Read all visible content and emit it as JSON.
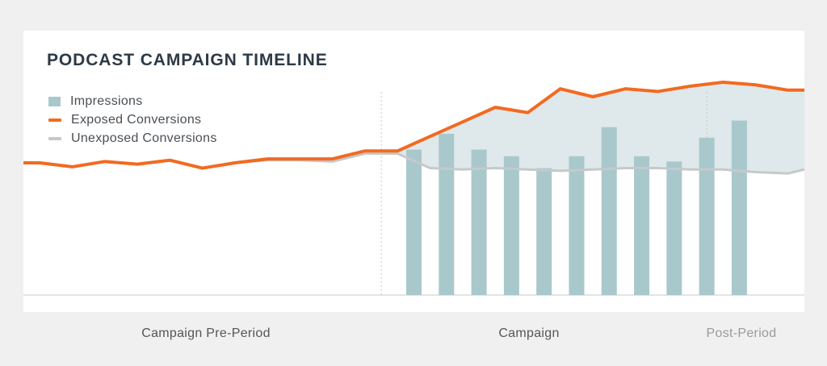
{
  "chart_data": {
    "type": "bar+line",
    "title": "PODCAST CAMPAIGN TIMELINE",
    "legend_position": "top-left",
    "legend": [
      {
        "label": "Impressions",
        "kind": "box"
      },
      {
        "label": "Exposed Conversions",
        "kind": "line"
      },
      {
        "label": "Unexposed Conversions",
        "kind": "line"
      }
    ],
    "colors": {
      "impressions": "#a9c8cc",
      "exposed": "#f26a21",
      "unexposed": "#c5c9cc",
      "gap_fill": "#dfe8ea",
      "divider": "#c8c8c8"
    },
    "periods": [
      {
        "label": "Campaign Pre-Period",
        "start": 0,
        "end": 11
      },
      {
        "label": "Campaign",
        "start": 11,
        "end": 21
      },
      {
        "label": "Post-Period",
        "start": 21,
        "end": 24
      }
    ],
    "x_range": [
      0,
      24
    ],
    "y_range": [
      0,
      100
    ],
    "series": [
      {
        "name": "Exposed Conversions",
        "x": [
          0,
          0.5,
          1.5,
          2.5,
          3.5,
          4.5,
          5.5,
          6.5,
          7.5,
          8.5,
          9.5,
          10.5,
          11.5,
          12.5,
          13.5,
          14.5,
          15.5,
          16.5,
          17.5,
          18.5,
          19.5,
          20.5,
          21.5,
          22.5,
          23.5,
          24
        ],
        "values": [
          50,
          50,
          48.5,
          50.5,
          49.5,
          51,
          48,
          50,
          51.5,
          51.5,
          51.5,
          54.5,
          54.5,
          60,
          65.5,
          71,
          69,
          78,
          75,
          78,
          77,
          79,
          80.5,
          79.5,
          77.5,
          77.5
        ]
      },
      {
        "name": "Unexposed Conversions",
        "x": [
          0,
          0.5,
          1.5,
          2.5,
          3.5,
          4.5,
          5.5,
          6.5,
          7.5,
          8.5,
          9.5,
          10.5,
          11.5,
          12.5,
          13.5,
          14.5,
          15.5,
          16.5,
          17.5,
          18.5,
          19.5,
          20.5,
          21.5,
          22.5,
          23.5,
          24
        ],
        "values": [
          50,
          50,
          48.5,
          50.5,
          49.5,
          51,
          48,
          50,
          51,
          51,
          50.5,
          53.5,
          53.5,
          48,
          47.5,
          48,
          47.5,
          47,
          47.5,
          48,
          48,
          47.5,
          47.5,
          46.5,
          46,
          47.5
        ]
      },
      {
        "name": "Impressions",
        "x": [
          12,
          13,
          14,
          15,
          16,
          17,
          18,
          19,
          20,
          21,
          22
        ],
        "values": [
          55,
          61,
          55,
          52.5,
          48,
          52.5,
          63.5,
          52.5,
          50.5,
          59.5,
          66
        ]
      }
    ]
  }
}
